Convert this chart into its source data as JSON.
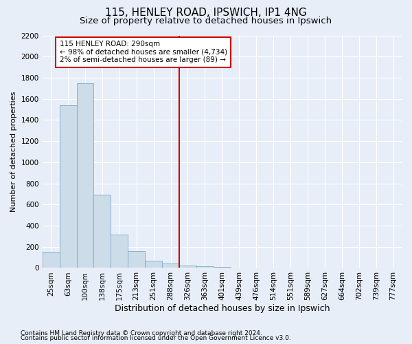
{
  "title1": "115, HENLEY ROAD, IPSWICH, IP1 4NG",
  "title2": "Size of property relative to detached houses in Ipswich",
  "xlabel": "Distribution of detached houses by size in Ipswich",
  "ylabel": "Number of detached properties",
  "footer1": "Contains HM Land Registry data © Crown copyright and database right 2024.",
  "footer2": "Contains public sector information licensed under the Open Government Licence v3.0.",
  "bar_labels": [
    "25sqm",
    "63sqm",
    "100sqm",
    "138sqm",
    "175sqm",
    "213sqm",
    "251sqm",
    "288sqm",
    "326sqm",
    "363sqm",
    "401sqm",
    "439sqm",
    "476sqm",
    "514sqm",
    "551sqm",
    "589sqm",
    "627sqm",
    "664sqm",
    "702sqm",
    "739sqm",
    "777sqm"
  ],
  "bar_values": [
    155,
    1540,
    1750,
    690,
    315,
    160,
    65,
    40,
    20,
    15,
    10,
    5,
    0,
    0,
    0,
    0,
    0,
    0,
    0,
    0,
    0
  ],
  "bar_color": "#ccdce8",
  "bar_edge_color": "#7aaac8",
  "background_color": "#e8eef8",
  "grid_color": "#ffffff",
  "vline_x_index": 7.5,
  "vline_color": "#cc0000",
  "annotation_line1": "115 HENLEY ROAD: 290sqm",
  "annotation_line2": "← 98% of detached houses are smaller (4,734)",
  "annotation_line3": "2% of semi-detached houses are larger (89) →",
  "annotation_box_color": "#ffffff",
  "annotation_box_edge_color": "#cc0000",
  "ylim": [
    0,
    2200
  ],
  "yticks": [
    0,
    200,
    400,
    600,
    800,
    1000,
    1200,
    1400,
    1600,
    1800,
    2000,
    2200
  ],
  "title1_fontsize": 11,
  "title2_fontsize": 9.5,
  "xlabel_fontsize": 9,
  "ylabel_fontsize": 8,
  "tick_fontsize": 7.5,
  "annotation_fontsize": 7.5,
  "footer_fontsize": 6.5
}
